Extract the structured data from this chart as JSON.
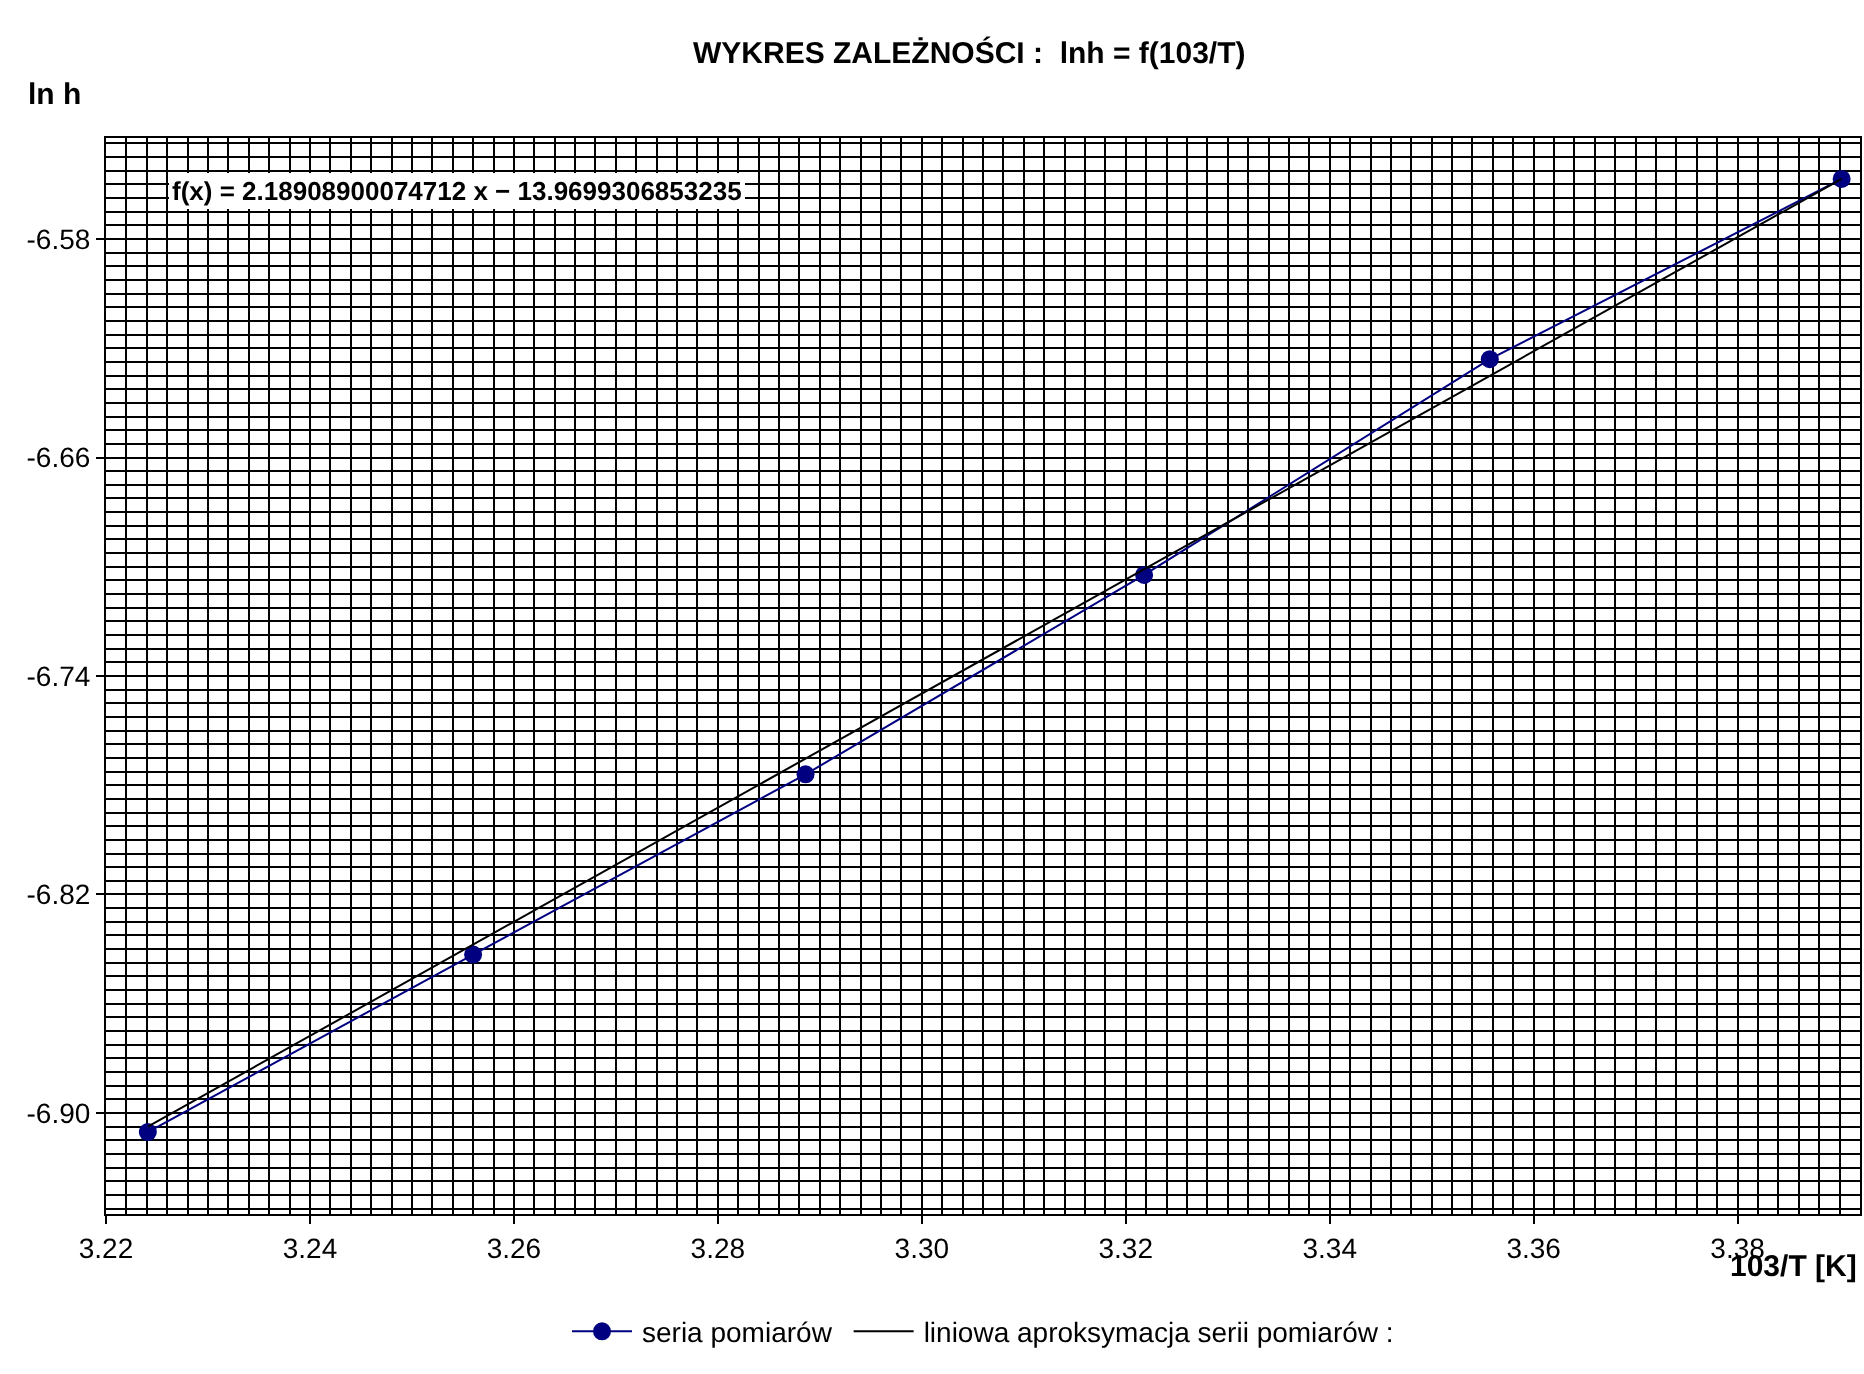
{
  "chart_data": {
    "type": "line",
    "title": "WYKRES ZALEŻNOŚCI :  lnh = f(103/T)",
    "xlabel": "103/T [K]",
    "ylabel": "ln h",
    "annotations": [
      "f(x) = 2.18908900074712 x − 13.9699306853235"
    ],
    "series": [
      {
        "name": "seria pomiarów",
        "color": "#000080",
        "marker": "circle",
        "x": [
          3.2241,
          3.256,
          3.2886,
          3.3218,
          3.3557,
          3.3902
        ],
        "values": [
          -6.907,
          -6.842,
          -6.776,
          -6.703,
          -6.624,
          -6.558
        ]
      },
      {
        "name": "liniowa aproksymacja serii pomiarów :",
        "color": "#000000",
        "marker": "none",
        "x": [
          3.2241,
          3.3902
        ],
        "values": [
          -6.905,
          -6.558
        ]
      }
    ],
    "xlim": [
      3.22,
      3.392
    ],
    "ylim": [
      -6.937,
      -6.543
    ],
    "xticks": [
      3.22,
      3.24,
      3.26,
      3.28,
      {
        "value": 3.3,
        "label": "3.30"
      },
      3.32,
      3.34,
      3.36,
      3.38
    ],
    "yticks": [
      -6.58,
      -6.66,
      -6.74,
      -6.82,
      {
        "value": -6.9,
        "label": "-6.90"
      }
    ],
    "grid": true,
    "legend": "bottom"
  }
}
